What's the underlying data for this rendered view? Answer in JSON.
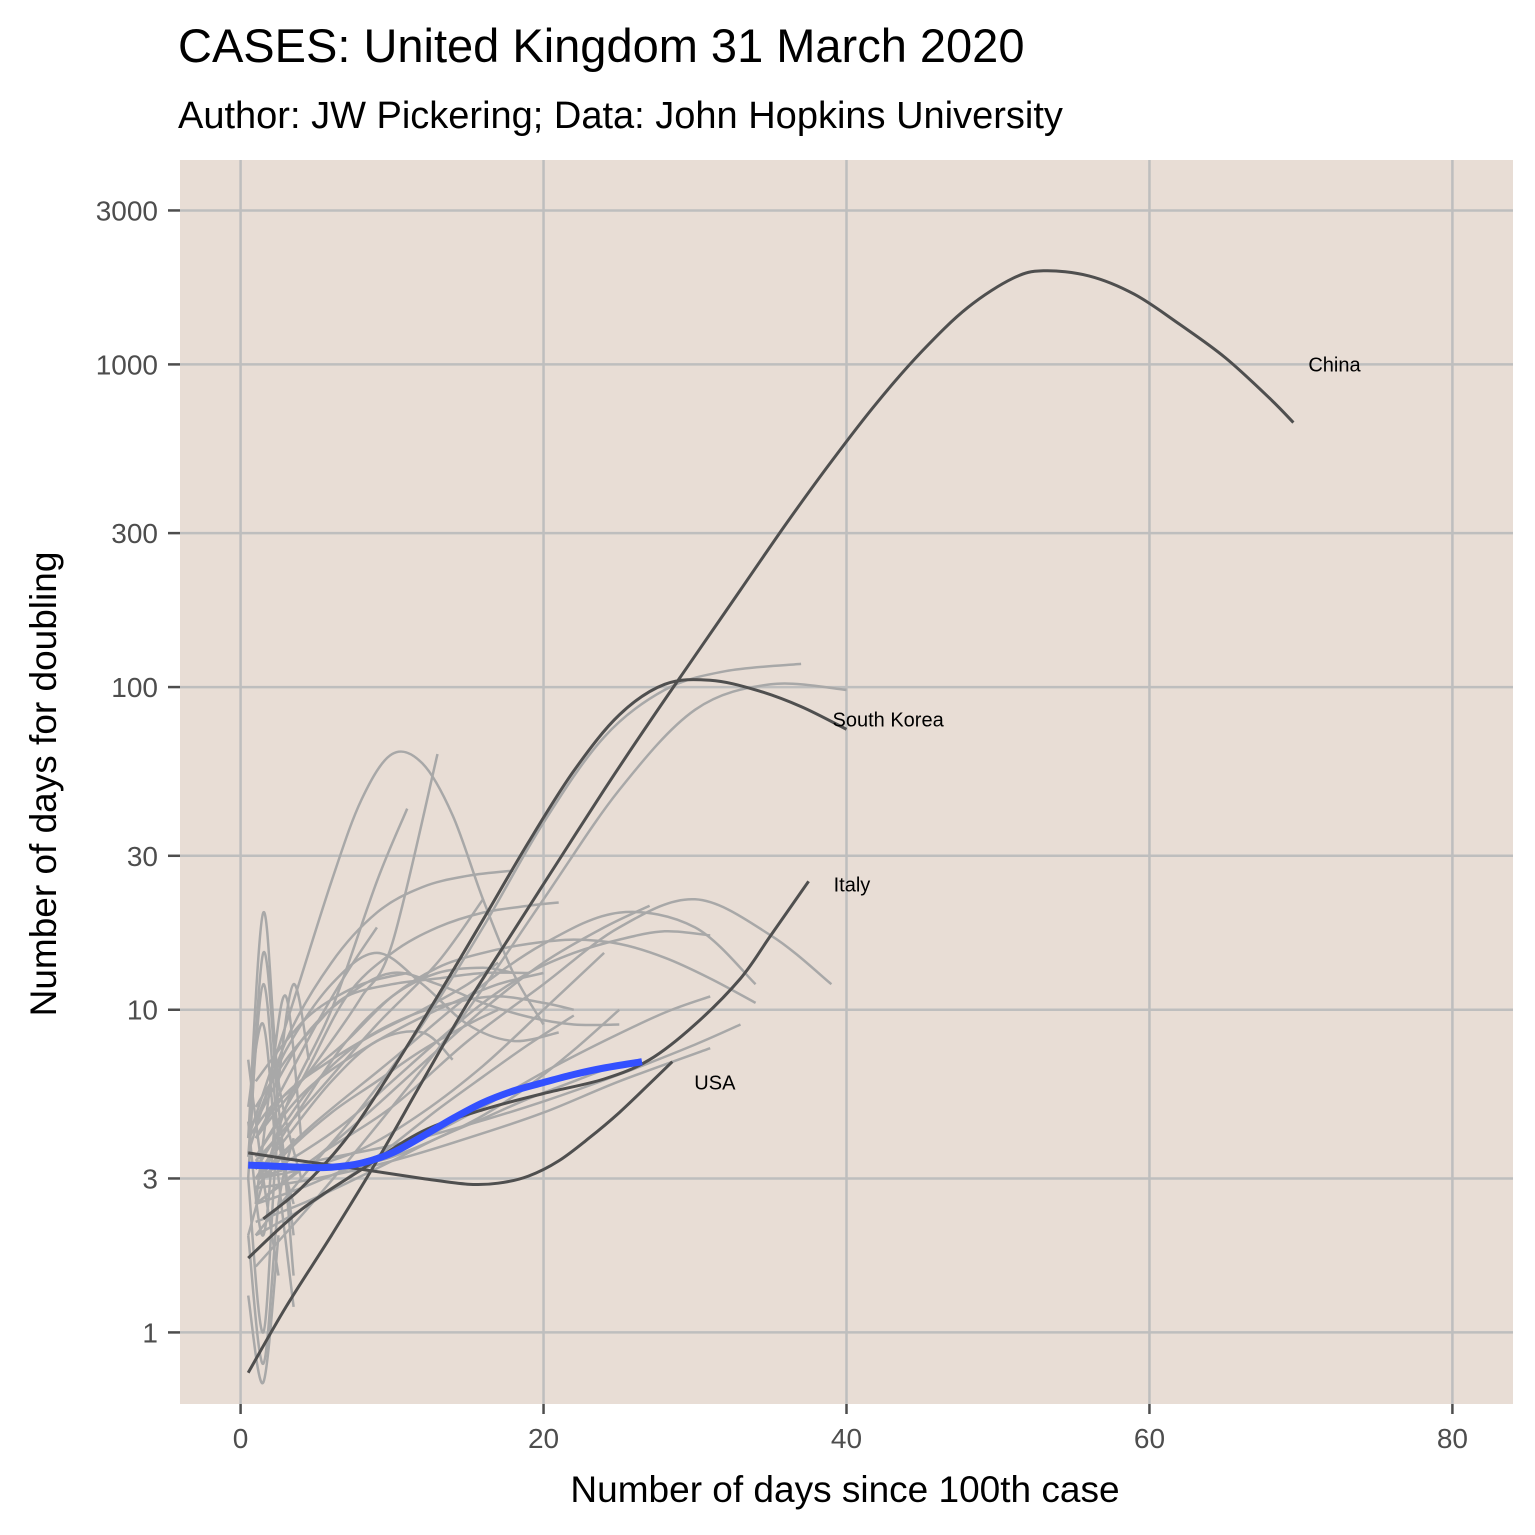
{
  "chart_data": {
    "type": "line",
    "title": "CASES: United Kingdom 31 March 2020",
    "subtitle": "Author: JW Pickering; Data: John Hopkins University",
    "xlabel": "Number of days since 100th case",
    "ylabel": "Number of days for doubling",
    "xlim": [
      -4,
      84
    ],
    "ylim": [
      0.6,
      4300
    ],
    "y_scale": "log10",
    "x_ticks": [
      0,
      20,
      40,
      60,
      80
    ],
    "y_ticks": [
      1,
      3,
      10,
      30,
      100,
      300,
      1000,
      3000
    ],
    "x_tick_labels": [
      "0",
      "20",
      "40",
      "60",
      "80"
    ],
    "y_tick_labels": [
      "1",
      "3",
      "10",
      "30",
      "100",
      "300",
      "1000",
      "3000"
    ],
    "grid": true,
    "legend": "none",
    "colors": {
      "panel": "#e8ddd5",
      "grid": "#bebebe",
      "other_countries": "#a8a8a8",
      "highlighted": "#4f4f4f",
      "uk": "#3350ff",
      "tick": "#4d4d4d"
    },
    "highlighted_series": [
      {
        "name": "China",
        "label": "China",
        "x": [
          0.5,
          3,
          6,
          9,
          12,
          15,
          18,
          21,
          24,
          27,
          30,
          33,
          36,
          39,
          42,
          45,
          48,
          51,
          53,
          56,
          59,
          62,
          65,
          68,
          69.5
        ],
        "y": [
          0.75,
          1.2,
          2.0,
          3.4,
          6,
          10.5,
          17.5,
          29,
          48,
          78,
          125,
          200,
          320,
          500,
          760,
          1100,
          1500,
          1850,
          1950,
          1880,
          1650,
          1330,
          1050,
          780,
          660
        ]
      },
      {
        "name": "South Korea",
        "label": "South Korea",
        "x": [
          1.5,
          4,
          7,
          10,
          13,
          16,
          19,
          22,
          25,
          28,
          31,
          34,
          37,
          40
        ],
        "y": [
          2.25,
          2.8,
          4,
          6.5,
          11,
          19,
          33,
          55,
          82,
          102,
          105,
          98,
          87,
          74
        ]
      },
      {
        "name": "Italy",
        "label": "Italy",
        "x": [
          0.5,
          4,
          8,
          12,
          16,
          20,
          24,
          27,
          30,
          33,
          35,
          37.5
        ],
        "y": [
          1.7,
          2.4,
          3.2,
          4.2,
          4.9,
          5.5,
          6.1,
          7,
          9,
          12.5,
          17,
          25
        ]
      },
      {
        "name": "USA",
        "label": "USA",
        "x": [
          0.5,
          4,
          8,
          12,
          15,
          17,
          19,
          21,
          23,
          25,
          27,
          28.5
        ],
        "y": [
          3.6,
          3.4,
          3.2,
          3.0,
          2.88,
          2.9,
          3.05,
          3.4,
          4.0,
          4.8,
          5.9,
          6.9
        ]
      }
    ],
    "uk_series": {
      "name": "United Kingdom",
      "x": [
        0.5,
        2,
        4,
        6,
        8,
        10,
        12,
        14,
        16,
        18,
        20,
        22,
        24,
        26.5
      ],
      "y": [
        3.3,
        3.28,
        3.25,
        3.25,
        3.35,
        3.6,
        4.05,
        4.6,
        5.15,
        5.6,
        5.95,
        6.3,
        6.6,
        6.9
      ]
    },
    "other_series": [
      {
        "x": [
          0.5,
          2,
          4,
          6,
          8,
          10,
          13
        ],
        "y": [
          4,
          5,
          6,
          8,
          11,
          16,
          62
        ]
      },
      {
        "x": [
          0.5,
          3,
          6,
          8,
          10,
          12,
          14,
          16,
          18,
          20
        ],
        "y": [
          4,
          9,
          25,
          45,
          62,
          58,
          40,
          22,
          13,
          9
        ]
      },
      {
        "x": [
          1,
          4,
          8,
          12,
          16,
          20,
          24,
          28,
          32,
          37
        ],
        "y": [
          2,
          3,
          5,
          9,
          18,
          38,
          70,
          98,
          112,
          118
        ]
      },
      {
        "x": [
          1,
          5,
          10,
          15,
          20,
          25,
          30,
          34
        ],
        "y": [
          3,
          4.5,
          7,
          11,
          16,
          20,
          18,
          12
        ]
      },
      {
        "x": [
          1,
          5,
          10,
          15,
          20,
          25,
          30,
          35,
          39
        ],
        "y": [
          2.5,
          3.5,
          5,
          8,
          12,
          18,
          22,
          17,
          12
        ]
      },
      {
        "x": [
          0.5,
          3,
          6,
          9,
          11
        ],
        "y": [
          2,
          5,
          10,
          25,
          42
        ]
      },
      {
        "x": [
          1,
          5,
          10,
          15,
          20,
          25,
          30,
          35,
          40
        ],
        "y": [
          1.6,
          2.6,
          5,
          10,
          22,
          48,
          85,
          102,
          98
        ]
      },
      {
        "x": [
          1,
          4,
          7,
          10,
          13,
          16,
          19,
          21
        ],
        "y": [
          3.5,
          6,
          11,
          15,
          18,
          20,
          21,
          21.5
        ]
      },
      {
        "x": [
          1,
          4,
          7,
          10,
          13,
          16,
          19,
          22,
          25,
          28,
          31,
          34
        ],
        "y": [
          4,
          6,
          8,
          11,
          13.5,
          15,
          16,
          16.5,
          16,
          14.5,
          12.5,
          10.5
        ]
      },
      {
        "x": [
          1,
          4,
          7,
          10,
          13,
          16,
          19,
          22,
          25,
          28,
          31
        ],
        "y": [
          3,
          3.6,
          4.5,
          6,
          8,
          10.5,
          13,
          15,
          16.5,
          17.5,
          17
        ]
      },
      {
        "x": [
          1,
          5,
          10,
          15,
          20,
          25,
          30,
          33
        ],
        "y": [
          3,
          3.4,
          3.8,
          4.4,
          5.2,
          6.3,
          7.8,
          9
        ]
      },
      {
        "x": [
          1,
          5,
          10,
          15,
          20,
          25,
          31
        ],
        "y": [
          2.8,
          3,
          3.4,
          4,
          4.8,
          6,
          7.6
        ]
      },
      {
        "x": [
          1,
          5,
          9,
          13,
          16
        ],
        "y": [
          3.4,
          5.5,
          9,
          14,
          22
        ]
      },
      {
        "x": [
          0.5,
          3,
          6,
          9,
          12,
          15,
          18
        ],
        "y": [
          3.6,
          8,
          14,
          20,
          24,
          26,
          27
        ]
      },
      {
        "x": [
          1,
          4,
          7,
          10,
          13,
          16,
          19,
          22,
          25
        ],
        "y": [
          4.5,
          8,
          11,
          13,
          12,
          10.5,
          9.5,
          9,
          9
        ]
      },
      {
        "x": [
          1,
          4,
          8,
          12,
          16,
          20,
          24,
          27
        ],
        "y": [
          2.5,
          3.2,
          4.6,
          6.8,
          10,
          14,
          18,
          21
        ]
      },
      {
        "x": [
          1,
          4,
          8,
          12,
          16,
          20,
          24
        ],
        "y": [
          3,
          3.2,
          3.7,
          4.8,
          6.7,
          10,
          15
        ]
      },
      {
        "x": [
          1,
          3,
          6,
          9,
          12,
          15,
          18,
          21
        ],
        "y": [
          4.5,
          7.5,
          12,
          15,
          12,
          9,
          8,
          8.5
        ]
      },
      {
        "x": [
          1,
          4,
          7,
          10,
          13,
          16,
          18
        ],
        "y": [
          3,
          5,
          8,
          11,
          13,
          13.5,
          13
        ]
      },
      {
        "x": [
          1,
          3,
          6,
          9,
          12,
          15,
          17
        ],
        "y": [
          4,
          5.5,
          7,
          8.5,
          10,
          12,
          14
        ]
      },
      {
        "x": [
          1,
          4,
          7,
          10,
          13,
          16,
          19,
          22,
          25
        ],
        "y": [
          2.5,
          2.8,
          3.2,
          3.5,
          4,
          4.7,
          5.8,
          7.5,
          10
        ]
      },
      {
        "x": [
          1,
          3,
          6,
          9,
          12,
          14
        ],
        "y": [
          3,
          4,
          6,
          8,
          8.5,
          7
        ]
      },
      {
        "x": [
          1,
          3,
          5,
          8,
          11,
          14,
          17,
          20,
          22
        ],
        "y": [
          3.2,
          4.5,
          6,
          8,
          9.5,
          10.5,
          11,
          10.5,
          10
        ]
      },
      {
        "x": [
          1,
          4,
          7,
          10,
          13,
          16,
          19,
          22,
          25
        ],
        "y": [
          2.2,
          2.5,
          2.9,
          3.4,
          4,
          4.6,
          5.3,
          6,
          6.8
        ]
      },
      {
        "x": [
          1,
          3,
          5,
          7,
          10,
          13,
          16,
          19
        ],
        "y": [
          5,
          7,
          9,
          11,
          12,
          12.5,
          13,
          13
        ]
      },
      {
        "x": [
          1,
          3,
          5,
          8,
          11,
          14,
          17,
          20
        ],
        "y": [
          3.5,
          4.8,
          6,
          7.5,
          9,
          10.5,
          12,
          13
        ]
      },
      {
        "x": [
          1,
          3,
          6,
          9,
          12,
          15,
          17
        ],
        "y": [
          2.8,
          3.6,
          4.8,
          6,
          7.5,
          9,
          10
        ]
      },
      {
        "x": [
          1,
          4,
          7,
          10,
          13,
          16,
          19,
          22
        ],
        "y": [
          2,
          2.4,
          3,
          3.8,
          4.9,
          6.2,
          7.8,
          9.6
        ]
      },
      {
        "x": [
          1,
          3,
          5,
          7,
          9
        ],
        "y": [
          4,
          6,
          9,
          13,
          18
        ]
      },
      {
        "x": [
          1,
          3,
          5,
          8,
          11
        ],
        "y": [
          6,
          8,
          10,
          12,
          13
        ]
      },
      {
        "x": [
          1,
          4,
          8,
          12,
          16,
          20,
          24,
          28,
          31
        ],
        "y": [
          3.4,
          3.2,
          3.4,
          4,
          5,
          6.4,
          8,
          9.8,
          11
        ]
      },
      {
        "x": [
          0.5,
          1.5,
          2.5,
          3.5
        ],
        "y": [
          3,
          15,
          5,
          2
        ]
      },
      {
        "x": [
          0.5,
          1.5,
          2.5,
          3.5
        ],
        "y": [
          3,
          1,
          4,
          1.5
        ]
      },
      {
        "x": [
          0.5,
          1.5,
          2.5,
          4
        ],
        "y": [
          4,
          20,
          6,
          3
        ]
      },
      {
        "x": [
          0.5,
          1.5,
          2.5,
          3.5
        ],
        "y": [
          2,
          0.8,
          2.5,
          4
        ]
      },
      {
        "x": [
          0.5,
          1.5,
          2.5,
          3.5
        ],
        "y": [
          5,
          9,
          3,
          1.2
        ]
      },
      {
        "x": [
          1,
          2,
          3,
          4
        ],
        "y": [
          2.5,
          6,
          11,
          4
        ]
      },
      {
        "x": [
          0.5,
          1.5,
          2.5,
          3.5,
          4.5
        ],
        "y": [
          4.5,
          2,
          6,
          12,
          7
        ]
      },
      {
        "x": [
          0.5,
          1.5,
          2.5
        ],
        "y": [
          1.3,
          0.7,
          2
        ]
      },
      {
        "x": [
          0.5,
          1.5,
          2.5
        ],
        "y": [
          7,
          3,
          1.5
        ]
      },
      {
        "x": [
          0.5,
          1.5,
          2.5,
          3.5
        ],
        "y": [
          3.5,
          12,
          4,
          2.5
        ]
      }
    ]
  }
}
